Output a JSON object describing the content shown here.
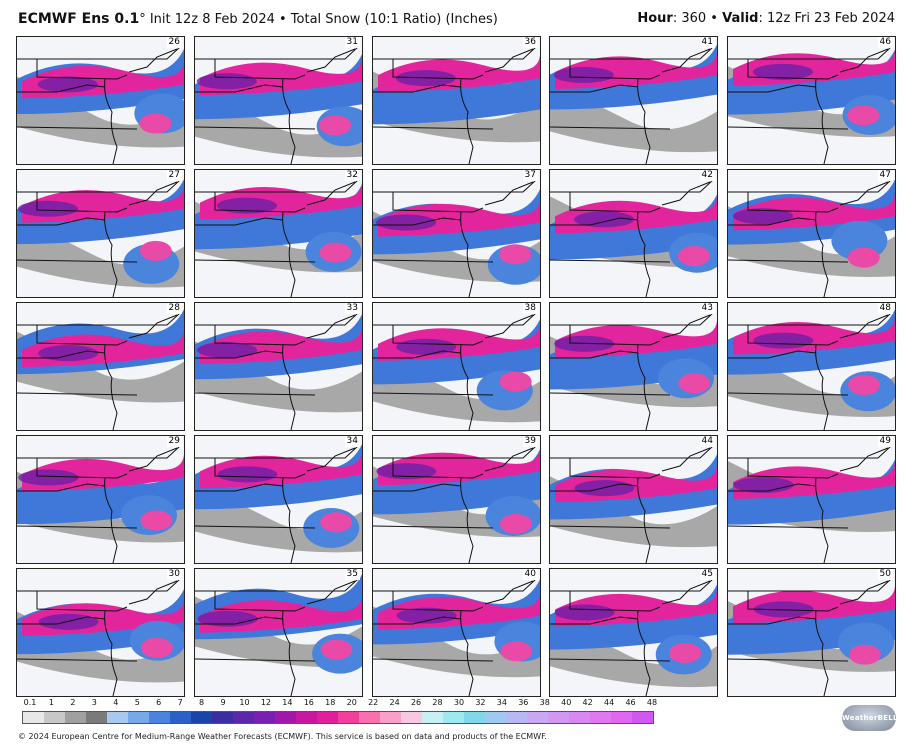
{
  "header": {
    "model": "ECMWF Ens 0.1",
    "degree": "°",
    "init_text": " Init 12z 8 Feb 2024 • Total Snow (10:1 Ratio) (Inches)",
    "hour_label": "Hour",
    "hour_value": ": 360 • ",
    "valid_label": "Valid",
    "valid_value": ": 12z Fri 23 Feb 2024"
  },
  "members": [
    [
      "26",
      "31",
      "36",
      "41",
      "46"
    ],
    [
      "27",
      "32",
      "37",
      "42",
      "47"
    ],
    [
      "28",
      "33",
      "38",
      "43",
      "48"
    ],
    [
      "29",
      "34",
      "39",
      "44",
      "49"
    ],
    [
      "30",
      "35",
      "40",
      "45",
      "50"
    ]
  ],
  "scale": {
    "ticks": [
      "0.1",
      "1",
      "2",
      "3",
      "4",
      "5",
      "6",
      "7",
      "8",
      "9",
      "10",
      "12",
      "14",
      "16",
      "18",
      "20",
      "22",
      "24",
      "26",
      "28",
      "30",
      "32",
      "34",
      "36",
      "38",
      "40",
      "42",
      "44",
      "46",
      "48"
    ],
    "colors": [
      "#e8e8e8",
      "#c8c8c8",
      "#a0a0a0",
      "#7a7a7a",
      "#a8c8f0",
      "#78a8e8",
      "#4a84dc",
      "#2a60c8",
      "#1a44a8",
      "#3a2ea0",
      "#5a28a8",
      "#7a20b0",
      "#a018a8",
      "#c818a0",
      "#e0209a",
      "#f0409c",
      "#f870b0",
      "#f8a0c8",
      "#f8c8e0",
      "#c8f0f4",
      "#9ee8f0",
      "#80d8e8",
      "#a0c8f0",
      "#b8b8f4",
      "#c8a8f0",
      "#d098f0",
      "#d888f0",
      "#e078f0",
      "#e068f0",
      "#d058f0"
    ]
  },
  "logo_text": "WeatherBELL",
  "footer": "© 2024 European Centre for Medium-Range Weather Forecasts (ECMWF). This service is based on data and products of the ECMWF."
}
